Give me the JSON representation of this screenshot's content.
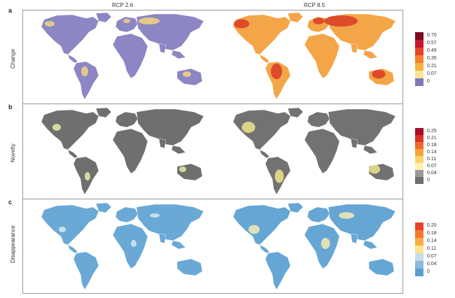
{
  "columns": {
    "left": "RCP 2.6",
    "right": "RCP 8.5"
  },
  "panels": [
    {
      "letter": "a",
      "label": "Change",
      "ticks": [
        "0.70",
        "0.57",
        "0.49",
        "0.35",
        "0.21",
        "0.07",
        "0"
      ],
      "colors": [
        "#7a0b22",
        "#c8142c",
        "#e8432a",
        "#f4812f",
        "#f8b143",
        "#fce39a",
        "#8079b8"
      ],
      "left_fill": "#8c86c4",
      "left_accent": "#f2d37f",
      "right_fill": "#f3a547",
      "right_accent": "#d83b26"
    },
    {
      "letter": "b",
      "label": "Novelty",
      "ticks": [
        "0.25",
        "0.21",
        "0.18",
        "0.14",
        "0.11",
        "0.07",
        "0.04",
        "0"
      ],
      "colors": [
        "#a50f27",
        "#d7312a",
        "#ee6a2d",
        "#f8a23a",
        "#fbd36a",
        "#fdf4b4",
        "#9a9a9a",
        "#6e6e6e"
      ],
      "left_fill": "#6f6f6f",
      "left_accent": "#e9eaa9",
      "right_fill": "#727272",
      "right_accent": "#ece58c"
    },
    {
      "letter": "c",
      "label": "Disappearance",
      "ticks": [
        "0.20",
        "0.18",
        "0.14",
        "0.11",
        "0.07",
        "0.04",
        "0"
      ],
      "colors": [
        "#e8432a",
        "#f3792f",
        "#f8ad45",
        "#fce58f",
        "#c7dde9",
        "#8bbbd9",
        "#5b9fcf"
      ],
      "left_fill": "#6aa9d6",
      "left_accent": "#d6e9ef",
      "right_fill": "#65a6d4",
      "right_accent": "#f3eab2"
    }
  ]
}
